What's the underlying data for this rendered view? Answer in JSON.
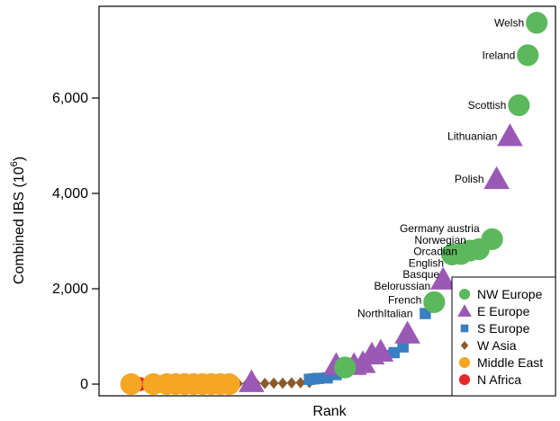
{
  "chart_data": {
    "type": "scatter",
    "xlabel": "Rank",
    "ylabel": "Combined IBS (10",
    "ylabel_superscript": "6",
    "ylabel_suffix": ")",
    "ylim": [
      -150,
      7800
    ],
    "xlim": [
      0,
      100
    ],
    "yticks": [
      0,
      2000,
      4000,
      6000
    ],
    "ytick_labels": [
      "0",
      "2,000",
      "4,000",
      "6,000"
    ],
    "grid": false,
    "legend_position": "bottom-right",
    "series": [
      {
        "name": "NW Europe",
        "color": "#5cb85c",
        "marker": "circle",
        "points": [
          [
            54,
            350
          ],
          [
            74,
            1720
          ],
          [
            78,
            2720
          ],
          [
            80,
            2730
          ],
          [
            82,
            2800
          ],
          [
            84,
            2830
          ],
          [
            87,
            3040
          ],
          [
            93,
            5850
          ],
          [
            95,
            6900
          ],
          [
            97,
            7580
          ]
        ]
      },
      {
        "name": "E Europe",
        "color": "#9b59b6",
        "marker": "triangle",
        "points": [
          [
            33,
            40
          ],
          [
            52,
            400
          ],
          [
            56,
            400
          ],
          [
            58,
            440
          ],
          [
            60,
            620
          ],
          [
            62,
            680
          ],
          [
            68,
            1060
          ],
          [
            76,
            2190
          ],
          [
            88,
            4300
          ],
          [
            91,
            5200
          ]
        ]
      },
      {
        "name": "S Europe",
        "color": "#3a7fc1",
        "marker": "square",
        "points": [
          [
            46,
            100
          ],
          [
            47,
            110
          ],
          [
            48,
            120
          ],
          [
            50,
            130
          ],
          [
            52,
            200
          ],
          [
            63,
            600
          ],
          [
            65,
            660
          ],
          [
            67,
            780
          ],
          [
            72,
            1480
          ]
        ]
      },
      {
        "name": "W Asia",
        "color": "#8b5a2b",
        "marker": "diamond",
        "points": [
          [
            30,
            10
          ],
          [
            32,
            10
          ],
          [
            34,
            15
          ],
          [
            36,
            15
          ],
          [
            38,
            20
          ],
          [
            40,
            20
          ],
          [
            42,
            25
          ],
          [
            44,
            30
          ],
          [
            46,
            35
          ]
        ]
      },
      {
        "name": "Middle East",
        "color": "#f5a623",
        "marker": "circle",
        "points": [
          [
            6,
            0
          ],
          [
            11,
            0
          ],
          [
            14,
            0
          ],
          [
            16,
            0
          ],
          [
            18,
            0
          ],
          [
            20,
            0
          ],
          [
            22,
            0
          ],
          [
            24,
            0
          ],
          [
            26,
            0
          ],
          [
            28,
            0
          ]
        ]
      },
      {
        "name": "N Africa",
        "color": "#e8262a",
        "marker": "circle",
        "points": [
          [
            8,
            0
          ],
          [
            10,
            0
          ],
          [
            12,
            0
          ],
          [
            13,
            0
          ]
        ]
      }
    ],
    "annotations": [
      {
        "text": "Welsh",
        "x": 97,
        "y": 7580
      },
      {
        "text": "Ireland",
        "x": 95,
        "y": 6900
      },
      {
        "text": "Scottish",
        "x": 93,
        "y": 5850
      },
      {
        "text": "Lithuanian",
        "x": 91,
        "y": 5200
      },
      {
        "text": "Polish",
        "x": 88,
        "y": 4300
      },
      {
        "text": "Germany austria",
        "x": 87,
        "y": 3260
      },
      {
        "text": "Norwegian",
        "x": 84,
        "y": 3020
      },
      {
        "text": "Orcadian",
        "x": 82,
        "y": 2780
      },
      {
        "text": "English",
        "x": 79,
        "y": 2540
      },
      {
        "text": "Basque",
        "x": 78,
        "y": 2300
      },
      {
        "text": "Belorussian",
        "x": 76,
        "y": 2060
      },
      {
        "text": "French",
        "x": 74,
        "y": 1760
      },
      {
        "text": "NorthItalian",
        "x": 72,
        "y": 1480
      }
    ]
  },
  "colors": {
    "axis": "#000000",
    "background": "#ffffff"
  }
}
